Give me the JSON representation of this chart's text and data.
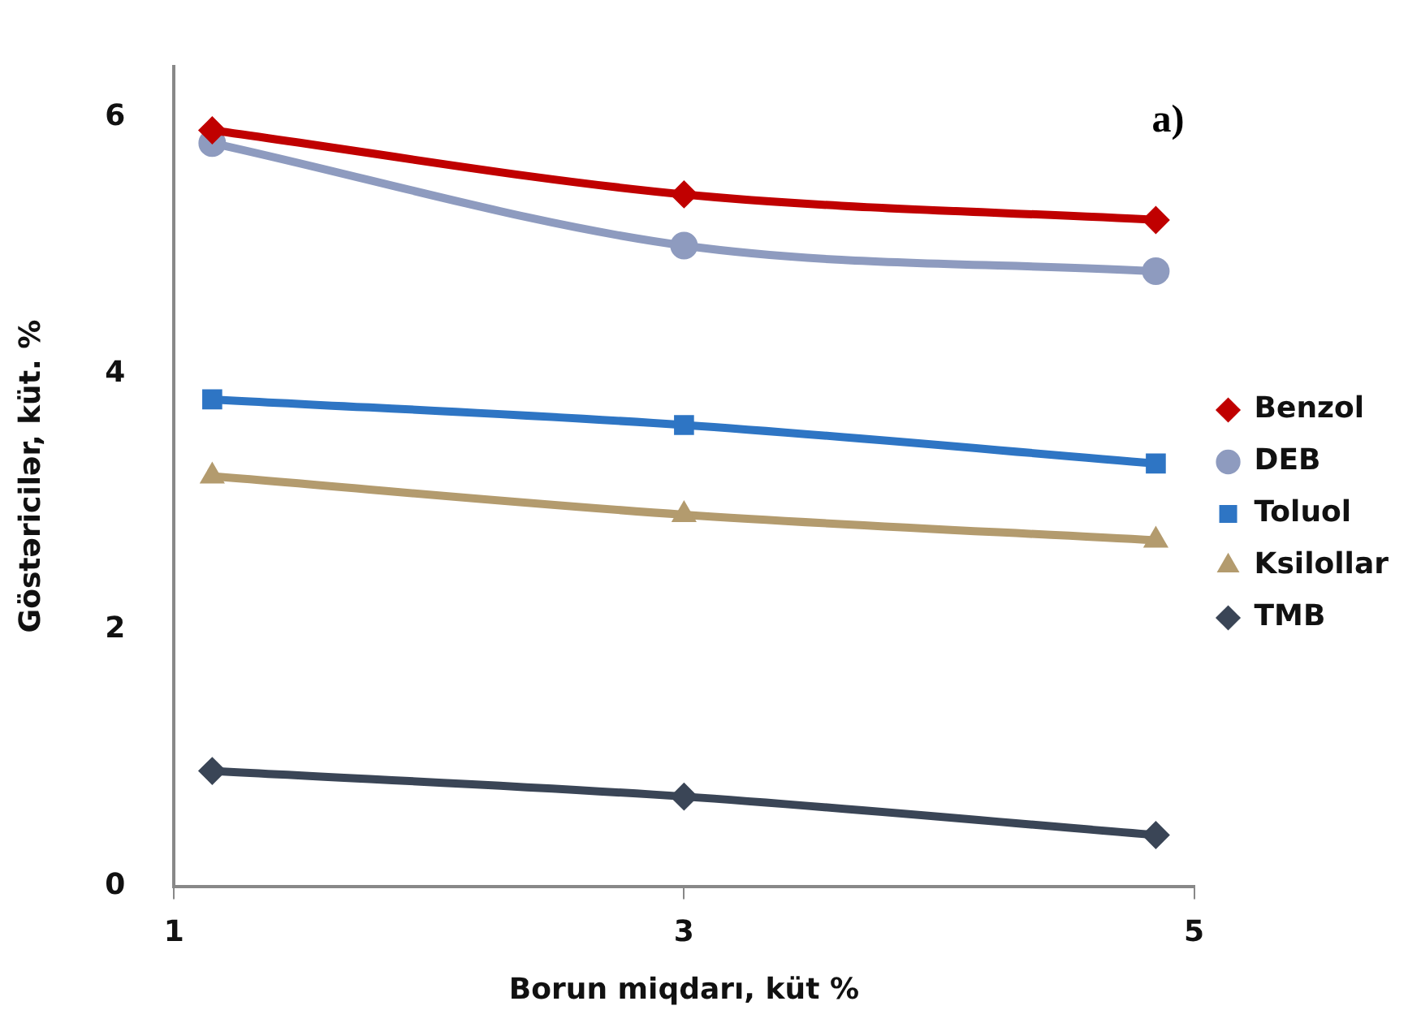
{
  "chart_data": {
    "type": "line",
    "xlabel": "Borun miqdarı, küt %",
    "ylabel": "Göstəricilər, küt. %",
    "annotations": [
      "a)"
    ],
    "x": [
      1.15,
      3,
      4.85
    ],
    "xlim": [
      1,
      5
    ],
    "xticks": [
      1,
      3,
      5
    ],
    "ylim": [
      0,
      6.4
    ],
    "yticks": [
      0,
      2,
      4,
      6
    ],
    "legend": "right",
    "series": [
      {
        "name": "Benzol",
        "color": "#c00000",
        "marker": "diamond",
        "values": [
          5.9,
          5.4,
          5.2
        ]
      },
      {
        "name": "DEB",
        "color": "#8e9bbf",
        "marker": "circle",
        "values": [
          5.8,
          5.0,
          4.8
        ]
      },
      {
        "name": "Toluol",
        "color": "#2e75c4",
        "marker": "square",
        "values": [
          3.8,
          3.6,
          3.3
        ]
      },
      {
        "name": "Ksilollar",
        "color": "#b39b6e",
        "marker": "triangle",
        "values": [
          3.2,
          2.9,
          2.7
        ]
      },
      {
        "name": "TMB",
        "color": "#3a4556",
        "marker": "diamond",
        "values": [
          0.9,
          0.7,
          0.4
        ]
      }
    ]
  }
}
